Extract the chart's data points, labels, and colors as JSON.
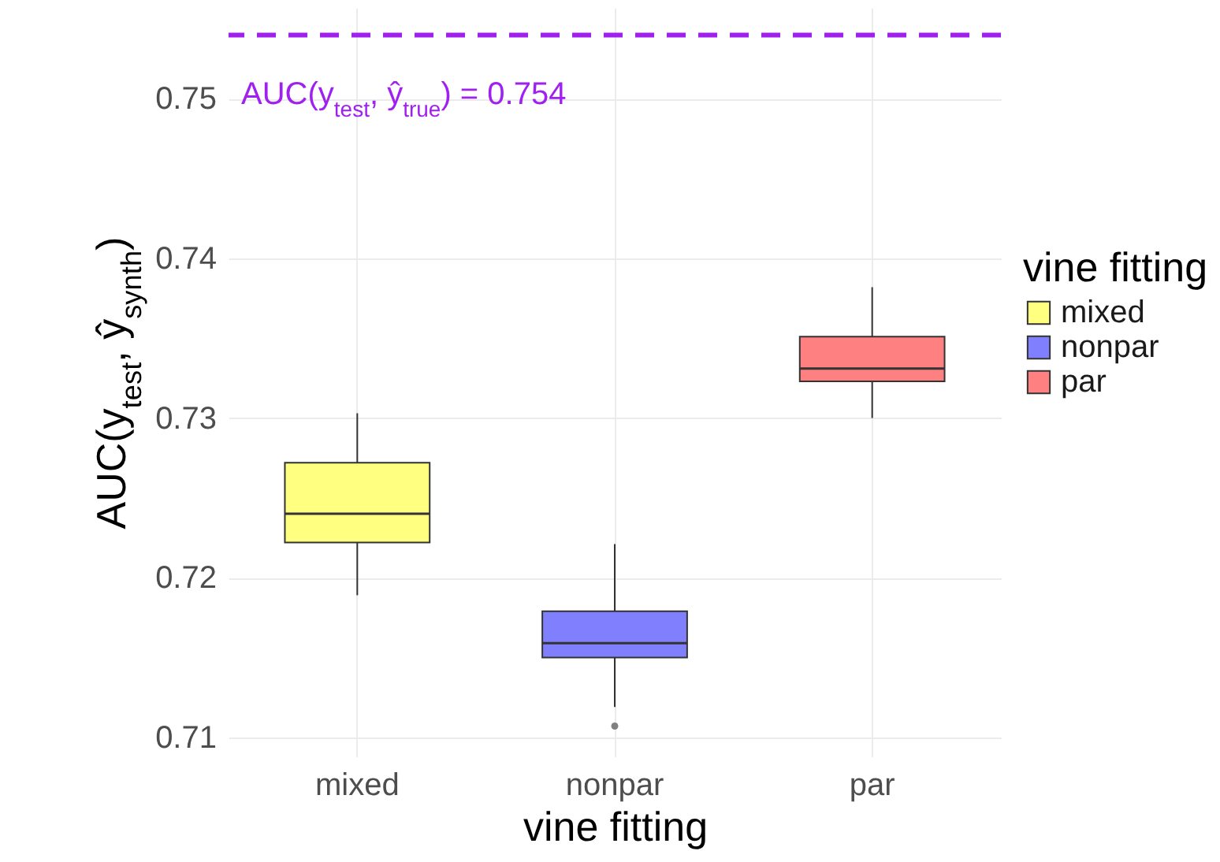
{
  "chart_data": {
    "type": "box",
    "categories": [
      "mixed",
      "nonpar",
      "par"
    ],
    "series": [
      {
        "name": "mixed",
        "color": "#ffff80",
        "boxes": [
          {
            "low": 0.7189,
            "q1": 0.7222,
            "median": 0.724,
            "q3": 0.7272,
            "high": 0.7303
          },
          null,
          null
        ]
      },
      {
        "name": "nonpar",
        "color": "#8080ff",
        "boxes": [
          null,
          {
            "low": 0.7119,
            "q1": 0.715,
            "median": 0.7159,
            "q3": 0.7179,
            "high": 0.7221,
            "outliers": [
              0.7107
            ]
          },
          null
        ]
      },
      {
        "name": "par",
        "color": "#ff8080",
        "boxes": [
          null,
          null,
          {
            "low": 0.73,
            "q1": 0.7323,
            "median": 0.7331,
            "q3": 0.7351,
            "high": 0.7382
          }
        ]
      }
    ],
    "xlabel": "vine fitting",
    "ylabel": "AUC(y$_{test}$, ŷ$_{synth}$)",
    "legend_title": "vine fitting",
    "legend": "right",
    "ylim": [
      0.7088,
      0.7557
    ],
    "yticks": [
      0.71,
      0.72,
      0.73,
      0.74,
      0.75
    ],
    "grid": true,
    "ref_lines": [
      {
        "axis": "y",
        "value": 0.754,
        "label": "AUC(y$_{test}$, ŷ$_{true}$) = 0.754",
        "color": "#a020f0",
        "line_style": "dashed"
      }
    ]
  }
}
